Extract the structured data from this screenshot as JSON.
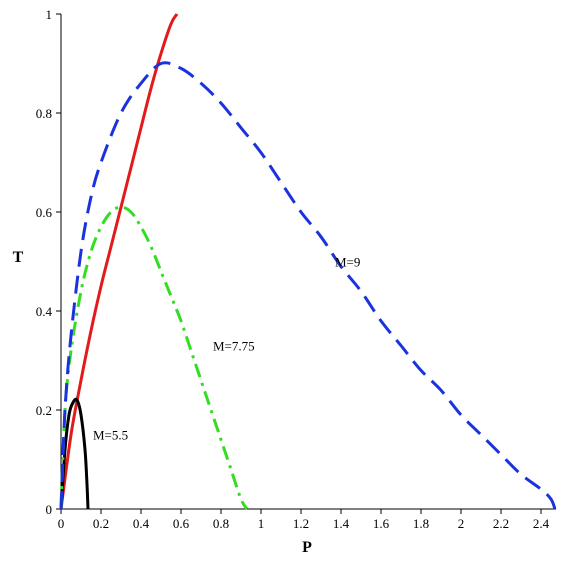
{
  "chart_data": {
    "type": "line",
    "title": "",
    "xlabel": "P",
    "ylabel": "T",
    "xlim": [
      0,
      2.5
    ],
    "ylim": [
      0,
      1
    ],
    "grid": false,
    "xticks": [
      0,
      0.2,
      0.4,
      0.6,
      0.8,
      1,
      1.2,
      1.4,
      1.6,
      1.8,
      2,
      2.2,
      2.4
    ],
    "xtick_labels": [
      "0",
      "0.2",
      "0.4",
      "0.6",
      "0.8",
      "1",
      "1.2",
      "1.4",
      "1.6",
      "1.8",
      "2",
      "2.2",
      "2.4"
    ],
    "yticks": [
      0,
      0.2,
      0.4,
      0.6,
      0.8,
      1
    ],
    "ytick_labels": [
      "0",
      "0.2",
      "0.4",
      "0.6",
      "0.8",
      "1"
    ],
    "series": [
      {
        "name": "",
        "color": "#e31a1c",
        "style": "solid",
        "x": [
          0,
          0.05,
          0.1,
          0.15,
          0.2,
          0.25,
          0.3,
          0.35,
          0.4,
          0.45,
          0.5,
          0.55,
          0.58
        ],
        "y": [
          0,
          0.15,
          0.26,
          0.36,
          0.45,
          0.53,
          0.61,
          0.69,
          0.77,
          0.85,
          0.92,
          0.98,
          1.0
        ]
      },
      {
        "name": "M=5.5",
        "color": "#000000",
        "style": "solid",
        "x": [
          0.0,
          0.02,
          0.04,
          0.06,
          0.08,
          0.1,
          0.12,
          0.13,
          0.135
        ],
        "y": [
          0.0,
          0.12,
          0.19,
          0.215,
          0.22,
          0.19,
          0.12,
          0.05,
          0.0
        ]
      },
      {
        "name": "M=7.75",
        "color": "#33dd22",
        "style": "dashdot",
        "x": [
          0.0,
          0.02,
          0.05,
          0.1,
          0.15,
          0.2,
          0.25,
          0.3,
          0.35,
          0.4,
          0.45,
          0.5,
          0.55,
          0.6,
          0.65,
          0.7,
          0.75,
          0.8,
          0.85,
          0.9,
          0.93
        ],
        "y": [
          0.0,
          0.2,
          0.32,
          0.44,
          0.52,
          0.57,
          0.6,
          0.61,
          0.6,
          0.57,
          0.53,
          0.48,
          0.43,
          0.38,
          0.32,
          0.26,
          0.2,
          0.14,
          0.08,
          0.02,
          0.0
        ]
      },
      {
        "name": "M=9",
        "color": "#1a33dd",
        "style": "dashed",
        "x": [
          0.0,
          0.02,
          0.05,
          0.1,
          0.15,
          0.2,
          0.3,
          0.4,
          0.5,
          0.6,
          0.7,
          0.8,
          0.9,
          1.0,
          1.1,
          1.2,
          1.3,
          1.4,
          1.5,
          1.6,
          1.7,
          1.8,
          1.9,
          2.0,
          2.1,
          2.2,
          2.3,
          2.4,
          2.45,
          2.47
        ],
        "y": [
          0.0,
          0.2,
          0.35,
          0.52,
          0.63,
          0.7,
          0.8,
          0.86,
          0.9,
          0.89,
          0.86,
          0.82,
          0.77,
          0.72,
          0.66,
          0.6,
          0.55,
          0.49,
          0.44,
          0.38,
          0.33,
          0.28,
          0.24,
          0.19,
          0.15,
          0.11,
          0.07,
          0.04,
          0.02,
          0.0
        ]
      }
    ],
    "annotations": [
      {
        "text": "M=9",
        "x": 1.37,
        "y": 0.49
      },
      {
        "text": "M=7.75",
        "x": 0.76,
        "y": 0.32
      },
      {
        "text": "M=5.5",
        "x": 0.16,
        "y": 0.14
      }
    ]
  }
}
